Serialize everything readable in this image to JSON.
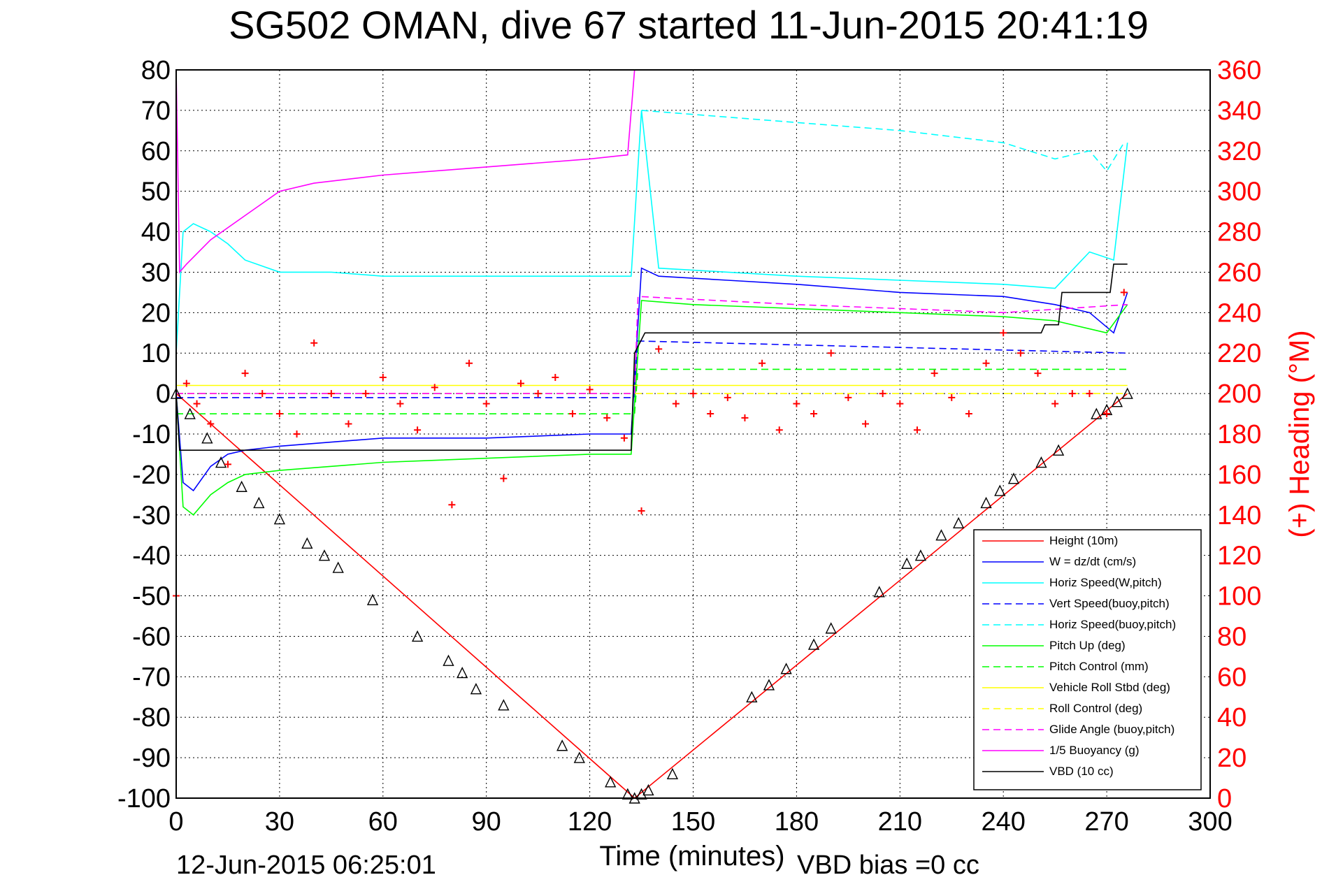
{
  "chart_data": {
    "type": "line",
    "title": "SG502 OMAN, dive 67 started 11-Jun-2015 20:41:19",
    "xlabel": "Time (minutes)",
    "ylabel_right": "(+) Heading (°M)",
    "footer_date": "12-Jun-2015 06:25:01",
    "footer_note": "VBD bias =0 cc",
    "xlim": [
      0,
      300
    ],
    "ylim": [
      -100,
      80
    ],
    "ylim_right": [
      0,
      360
    ],
    "xticks": [
      "0",
      "30",
      "60",
      "90",
      "120",
      "150",
      "180",
      "210",
      "240",
      "270",
      "300"
    ],
    "yticks": [
      "80",
      "70",
      "60",
      "50",
      "40",
      "30",
      "20",
      "10",
      "0",
      "-10",
      "-20",
      "-30",
      "-40",
      "-50",
      "-60",
      "-70",
      "-80",
      "-90",
      "-100"
    ],
    "yticks_right": [
      "360",
      "340",
      "320",
      "300",
      "280",
      "260",
      "240",
      "220",
      "200",
      "180",
      "160",
      "140",
      "120",
      "100",
      "80",
      "60",
      "40",
      "20",
      "0"
    ],
    "grid": true,
    "legend_position": "bottom-right",
    "series": [
      {
        "name": "Height (10m)",
        "color": "#ff0000",
        "style": "solid",
        "x": [
          0,
          133,
          276
        ],
        "y": [
          0,
          -100,
          0
        ]
      },
      {
        "name": "W = dz/dt (cm/s)",
        "color": "#0000ff",
        "style": "solid",
        "x": [
          0,
          2,
          5,
          10,
          15,
          20,
          30,
          45,
          60,
          90,
          120,
          132,
          135,
          140,
          160,
          180,
          210,
          240,
          255,
          265,
          272,
          276
        ],
        "y": [
          0,
          -22,
          -24,
          -18,
          -15,
          -14,
          -13,
          -12,
          -11,
          -11,
          -10,
          -10,
          31,
          29,
          28,
          27,
          25,
          24,
          22,
          20,
          15,
          25
        ]
      },
      {
        "name": "Horiz Speed(W,pitch)",
        "color": "#00ffff",
        "style": "solid",
        "x": [
          0,
          2,
          5,
          10,
          15,
          20,
          30,
          45,
          60,
          90,
          120,
          132,
          135,
          140,
          160,
          180,
          210,
          240,
          255,
          265,
          272,
          276
        ],
        "y": [
          10,
          40,
          42,
          40,
          37,
          33,
          30,
          30,
          29,
          29,
          29,
          29,
          70,
          31,
          30,
          29,
          28,
          27,
          26,
          35,
          33,
          62
        ]
      },
      {
        "name": "Vert Speed(buoy,pitch)",
        "color": "#0000ff",
        "style": "dashed",
        "x": [
          0,
          133,
          134,
          276
        ],
        "y": [
          -1,
          -1,
          13,
          10
        ]
      },
      {
        "name": "Horiz Speed(buoy,pitch)",
        "color": "#00ffff",
        "style": "dashed",
        "x": [
          135,
          150,
          180,
          210,
          240,
          255,
          265,
          270,
          275
        ],
        "y": [
          70,
          69,
          67,
          65,
          62,
          58,
          60,
          55,
          62
        ]
      },
      {
        "name": "Pitch Up (deg)",
        "color": "#00ff00",
        "style": "solid",
        "x": [
          0,
          2,
          5,
          10,
          15,
          20,
          30,
          60,
          90,
          120,
          132,
          135,
          150,
          180,
          210,
          240,
          255,
          270,
          276
        ],
        "y": [
          0,
          -28,
          -30,
          -25,
          -22,
          -20,
          -19,
          -17,
          -16,
          -15,
          -15,
          23,
          22,
          21,
          20,
          19,
          18,
          15,
          22
        ]
      },
      {
        "name": "Pitch Control (mm)",
        "color": "#00ff00",
        "style": "dashed",
        "x": [
          0,
          133,
          134,
          276
        ],
        "y": [
          -5,
          -5,
          6,
          6
        ]
      },
      {
        "name": "Vehicle Roll Stbd (deg)",
        "color": "#ffff00",
        "style": "solid",
        "x": [
          0,
          276
        ],
        "y": [
          2,
          2
        ]
      },
      {
        "name": "Roll Control (deg)",
        "color": "#ffff00",
        "style": "dashed",
        "x": [
          0,
          276
        ],
        "y": [
          0,
          0
        ]
      },
      {
        "name": "Glide Angle (buoy,pitch)",
        "color": "#ff00ff",
        "style": "dashed",
        "x": [
          0,
          133,
          134,
          180,
          240,
          276
        ],
        "y": [
          0,
          0,
          24,
          22,
          20,
          22
        ]
      },
      {
        "name": "1/5 Buoyancy (g)",
        "color": "#ff00ff",
        "style": "solid",
        "x": [
          0,
          1,
          3,
          10,
          20,
          30,
          40,
          60,
          90,
          120,
          131,
          133
        ],
        "y": [
          80,
          30,
          32,
          38,
          44,
          50,
          52,
          54,
          56,
          58,
          59,
          80
        ]
      },
      {
        "name": "VBD (10 cc)",
        "color": "#000000",
        "style": "solid",
        "x": [
          0,
          1,
          132,
          133,
          136,
          251,
          252,
          256,
          257,
          271,
          272,
          276
        ],
        "y": [
          0,
          -14,
          -14,
          10,
          15,
          15,
          17,
          17,
          25,
          25,
          32,
          32
        ]
      }
    ],
    "heading_series": {
      "name": "Heading",
      "color": "#ff0000",
      "marker": "+",
      "axis": "right",
      "x": [
        0,
        3,
        6,
        10,
        15,
        20,
        25,
        30,
        35,
        40,
        45,
        50,
        55,
        60,
        65,
        70,
        75,
        80,
        85,
        90,
        95,
        100,
        105,
        110,
        115,
        120,
        125,
        130,
        135,
        140,
        145,
        150,
        155,
        160,
        165,
        170,
        175,
        180,
        185,
        190,
        195,
        200,
        205,
        210,
        215,
        220,
        225,
        230,
        235,
        240,
        245,
        250,
        255,
        260,
        265,
        270,
        275
      ],
      "y": [
        100,
        205,
        195,
        185,
        165,
        210,
        200,
        190,
        180,
        225,
        200,
        185,
        200,
        208,
        195,
        182,
        203,
        145,
        215,
        195,
        158,
        205,
        200,
        208,
        190,
        202,
        188,
        178,
        142,
        222,
        195,
        200,
        190,
        198,
        188,
        215,
        182,
        195,
        190,
        220,
        198,
        185,
        200,
        195,
        182,
        210,
        198,
        190,
        215,
        230,
        220,
        210,
        195,
        200,
        200,
        190,
        250
      ]
    },
    "marker_series": {
      "color": "#000000",
      "marker": "triangles",
      "x": [
        0,
        4,
        9,
        13,
        19,
        24,
        30,
        38,
        43,
        47,
        57,
        70,
        79,
        83,
        87,
        95,
        112,
        117,
        126,
        131,
        133,
        135,
        137,
        144,
        167,
        172,
        177,
        185,
        190,
        204,
        212,
        216,
        222,
        227,
        235,
        239,
        243,
        251,
        256,
        267,
        270,
        273,
        276
      ],
      "y": [
        0,
        -5,
        -11,
        -17,
        -23,
        -27,
        -31,
        -37,
        -40,
        -43,
        -51,
        -60,
        -66,
        -69,
        -73,
        -77,
        -87,
        -90,
        -96,
        -99,
        -100,
        -99,
        -98,
        -94,
        -75,
        -72,
        -68,
        -62,
        -58,
        -49,
        -42,
        -40,
        -35,
        -32,
        -27,
        -24,
        -21,
        -17,
        -14,
        -5,
        -4,
        -2,
        0
      ]
    }
  }
}
